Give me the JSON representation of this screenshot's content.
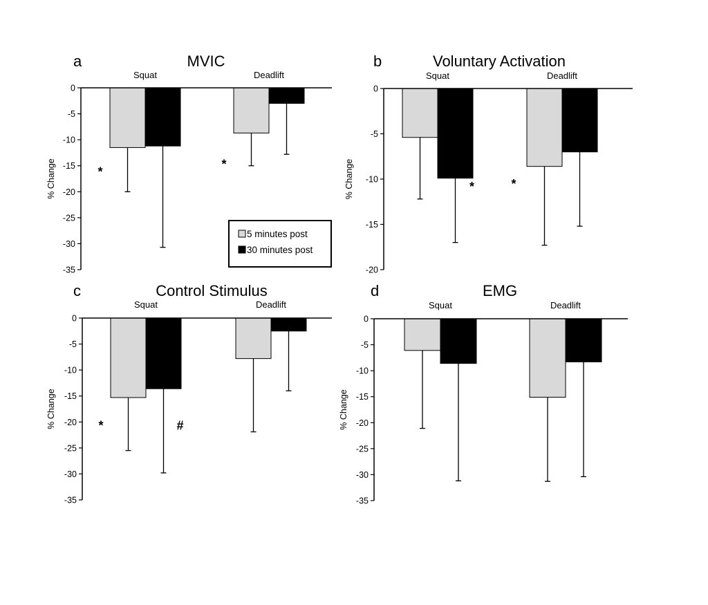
{
  "legend": {
    "items": [
      {
        "label": "5 minutes post",
        "color": "#d9d9d9"
      },
      {
        "label": "30 minutes post",
        "color": "#000000"
      }
    ]
  },
  "chart_data": [
    {
      "type": "bar",
      "letter": "a",
      "title": "MVIC",
      "ylabel": "% Change",
      "ylim": [
        -35,
        0
      ],
      "yticks": [
        0,
        -5,
        -10,
        -15,
        -20,
        -25,
        -30,
        -35
      ],
      "categories": [
        "Squat",
        "Deadlift"
      ],
      "series": [
        {
          "name": "5 minutes post",
          "color": "#d9d9d9",
          "values": [
            -11.5,
            -8.7
          ],
          "error": [
            8.5,
            6.3
          ]
        },
        {
          "name": "30 minutes post",
          "color": "#000000",
          "values": [
            -11.2,
            -3.0
          ],
          "error": [
            19.5,
            9.8
          ]
        }
      ],
      "annotations": [
        {
          "text": "*",
          "category": 0,
          "series": 0,
          "y": -17
        },
        {
          "text": "*",
          "category": 1,
          "series": 0,
          "y": -15.5
        }
      ]
    },
    {
      "type": "bar",
      "letter": "b",
      "title": "Voluntary Activation",
      "ylabel": "% Change",
      "ylim": [
        -20,
        0
      ],
      "yticks": [
        0,
        -5,
        -10,
        -15,
        -20
      ],
      "categories": [
        "Squat",
        "Deadlift"
      ],
      "series": [
        {
          "name": "5 minutes post",
          "color": "#d9d9d9",
          "values": [
            -5.4,
            -8.6
          ],
          "error": [
            6.8,
            8.7
          ]
        },
        {
          "name": "30 minutes post",
          "color": "#000000",
          "values": [
            -9.9,
            -7.0
          ],
          "error": [
            7.1,
            8.2
          ]
        }
      ],
      "annotations": [
        {
          "text": "*",
          "category": 0,
          "series": 1,
          "y": -11.3
        },
        {
          "text": "*",
          "category": 1,
          "series": 0,
          "y": -11.0
        }
      ]
    },
    {
      "type": "bar",
      "letter": "c",
      "title": "Control Stimulus",
      "ylabel": "% Change",
      "ylim": [
        -35,
        0
      ],
      "yticks": [
        0,
        -5,
        -10,
        -15,
        -20,
        -25,
        -30,
        -35
      ],
      "categories": [
        "Squat",
        "Deadlift"
      ],
      "series": [
        {
          "name": "5 minutes post",
          "color": "#d9d9d9",
          "values": [
            -15.3,
            -7.8
          ],
          "error": [
            10.2,
            14.1
          ]
        },
        {
          "name": "30 minutes post",
          "color": "#000000",
          "values": [
            -13.6,
            -2.5
          ],
          "error": [
            16.2,
            11.5
          ]
        }
      ],
      "annotations": [
        {
          "text": "*",
          "category": 0,
          "series": 0,
          "y": -21.5
        },
        {
          "text": "#",
          "category": 0,
          "series": 1,
          "y": -21.5
        }
      ]
    },
    {
      "type": "bar",
      "letter": "d",
      "title": "EMG",
      "ylabel": "% Change",
      "ylim": [
        -35,
        0
      ],
      "yticks": [
        0,
        -5,
        -10,
        -15,
        -20,
        -25,
        -30,
        -35
      ],
      "categories": [
        "Squat",
        "Deadlift"
      ],
      "series": [
        {
          "name": "5 minutes post",
          "color": "#d9d9d9",
          "values": [
            -6.1,
            -15.1
          ],
          "error": [
            15.0,
            16.2
          ]
        },
        {
          "name": "30 minutes post",
          "color": "#000000",
          "values": [
            -8.6,
            -8.3
          ],
          "error": [
            22.6,
            22.1
          ]
        }
      ],
      "annotations": []
    }
  ]
}
